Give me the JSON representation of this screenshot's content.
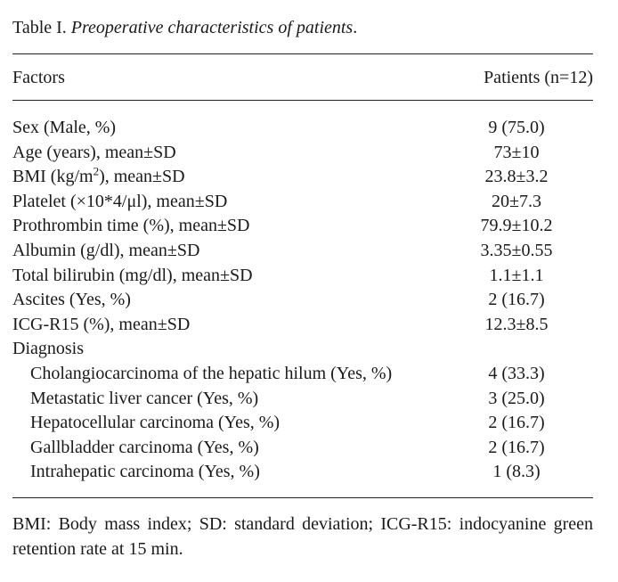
{
  "caption": {
    "label": "Table I.",
    "title": "Preoperative characteristics of patients",
    "period": "."
  },
  "header": {
    "factor": "Factors",
    "value": "Patients (n=12)"
  },
  "rows": [
    {
      "label": "Sex (Male, %)",
      "value": "9 (75.0)"
    },
    {
      "label": "Age (years), mean±SD",
      "value": "73±10"
    },
    {
      "label_pre": "BMI (kg/m",
      "label_sup": "2",
      "label_post": "), mean±SD",
      "value": "23.8±3.2"
    },
    {
      "label": "Platelet (×10*4/μl), mean±SD",
      "value": "20±7.3"
    },
    {
      "label": "Prothrombin time (%), mean±SD",
      "value": "79.9±10.2"
    },
    {
      "label": "Albumin (g/dl), mean±SD",
      "value": "3.35±0.55"
    },
    {
      "label": "Total bilirubin (mg/dl), mean±SD",
      "value": "1.1±1.1"
    },
    {
      "label": "Ascites (Yes, %)",
      "value": "2 (16.7)"
    },
    {
      "label": "ICG-R15 (%), mean±SD",
      "value": "12.3±8.5"
    },
    {
      "label": "Diagnosis",
      "value": ""
    },
    {
      "label": "Cholangiocarcinoma of the hepatic hilum (Yes, %)",
      "value": "4 (33.3)"
    },
    {
      "label": "Metastatic liver cancer (Yes, %)",
      "value": "3 (25.0)"
    },
    {
      "label": "Hepatocellular carcinoma (Yes, %)",
      "value": "2 (16.7)"
    },
    {
      "label": "Gallbladder carcinoma (Yes, %)",
      "value": "2 (16.7)"
    },
    {
      "label": "Intrahepatic carcinoma (Yes, %)",
      "value": "1 (8.3)"
    }
  ],
  "footnote": "BMI: Body mass index; SD: standard deviation; ICG-R15: indocyanine green retention rate at 15 min."
}
